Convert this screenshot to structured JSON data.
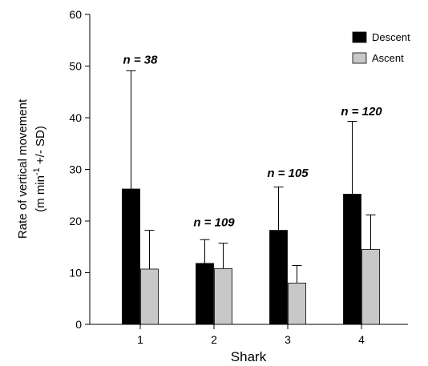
{
  "chart_data": {
    "type": "bar",
    "xlabel": "Shark",
    "ylabel_line1": "Rate of vertical movement",
    "ylabel_line2_pre": "(m min",
    "ylabel_line2_sup": "-1",
    "ylabel_line2_post": " +/- SD)",
    "categories": [
      "1",
      "2",
      "3",
      "4"
    ],
    "ylim": [
      0,
      60
    ],
    "yticks": [
      0,
      10,
      20,
      30,
      40,
      50,
      60
    ],
    "legend_position": "top-right",
    "series": [
      {
        "name": "Descent",
        "color": "#000000",
        "values": [
          26.2,
          11.8,
          18.2,
          25.2
        ],
        "sd": [
          22.9,
          4.6,
          8.4,
          14.1
        ]
      },
      {
        "name": "Ascent",
        "color": "#c8c8c8",
        "values": [
          10.7,
          10.8,
          8.0,
          14.5
        ],
        "sd": [
          7.5,
          4.9,
          3.4,
          6.7
        ]
      }
    ],
    "annotations": [
      {
        "category": "1",
        "text": "n = 38",
        "y": 50.5
      },
      {
        "category": "2",
        "text": "n = 109",
        "y": 19.0
      },
      {
        "category": "3",
        "text": "n = 105",
        "y": 28.5
      },
      {
        "category": "4",
        "text": "n = 120",
        "y": 40.5
      }
    ]
  }
}
